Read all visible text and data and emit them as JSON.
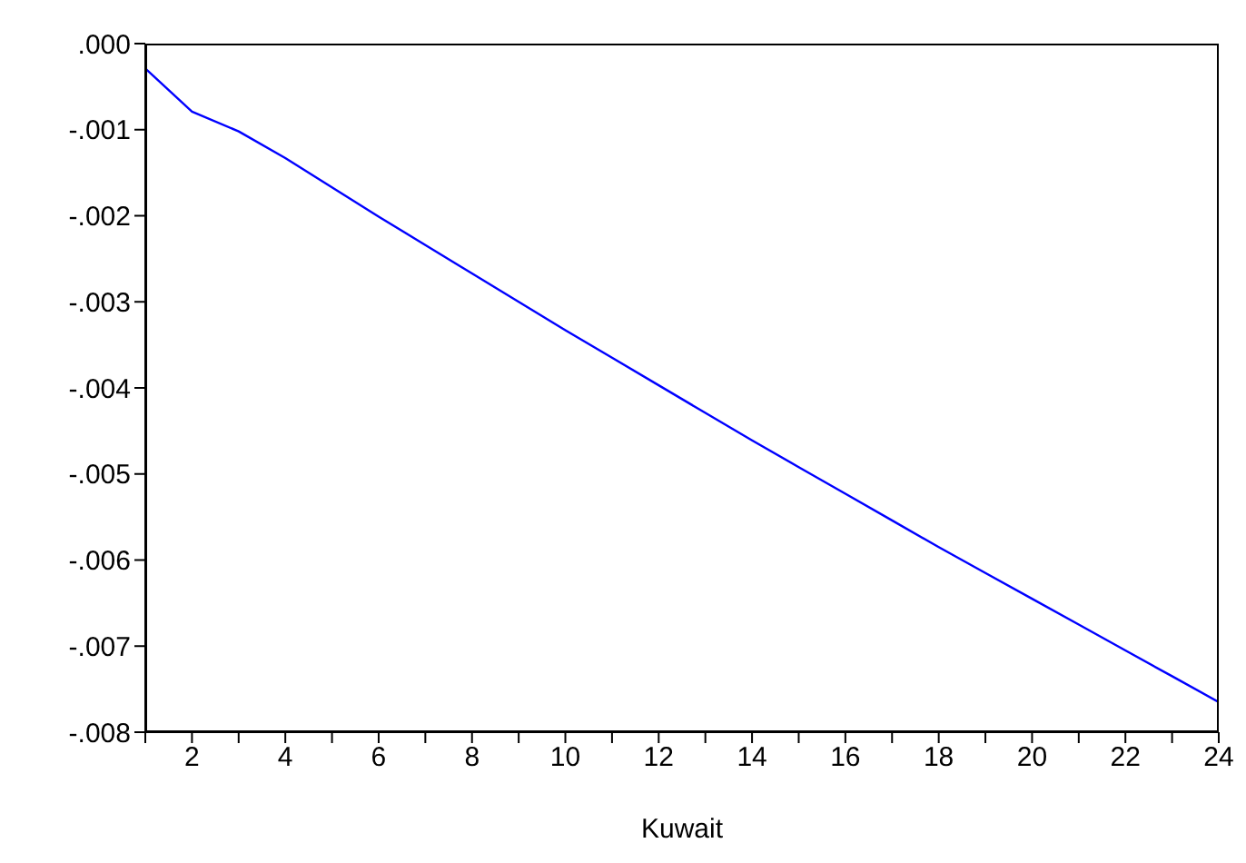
{
  "chart_data": {
    "type": "line",
    "xlabel": "Kuwait",
    "x": [
      1,
      2,
      3,
      4,
      5,
      6,
      7,
      8,
      9,
      10,
      11,
      12,
      13,
      14,
      15,
      16,
      17,
      18,
      19,
      20,
      21,
      22,
      23,
      24
    ],
    "series": [
      {
        "color": "#0000ff",
        "values": [
          -0.00029,
          -0.00079,
          -0.00102,
          -0.00133,
          -0.00167,
          -0.00201,
          -0.00234,
          -0.00267,
          -0.003,
          -0.00333,
          -0.00365,
          -0.00397,
          -0.00429,
          -0.00461,
          -0.00492,
          -0.00523,
          -0.00554,
          -0.00585,
          -0.00615,
          -0.00645,
          -0.00675,
          -0.00705,
          -0.00735,
          -0.00765
        ]
      }
    ],
    "xlim": [
      1,
      24
    ],
    "xticks": [
      {
        "value": 1,
        "label": null
      },
      2,
      {
        "value": 3,
        "label": null
      },
      4,
      {
        "value": 5,
        "label": null
      },
      6,
      {
        "value": 7,
        "label": null
      },
      8,
      {
        "value": 9,
        "label": null
      },
      10,
      {
        "value": 11,
        "label": null
      },
      12,
      {
        "value": 13,
        "label": null
      },
      14,
      {
        "value": 15,
        "label": null
      },
      16,
      {
        "value": 17,
        "label": null
      },
      18,
      {
        "value": 19,
        "label": null
      },
      20,
      {
        "value": 21,
        "label": null
      },
      22,
      {
        "value": 23,
        "label": null
      },
      24
    ],
    "ylim": [
      -0.008,
      0
    ],
    "yticks": [
      {
        "value": 0,
        "label": ".000"
      },
      {
        "value": -0.001,
        "label": "-.001"
      },
      {
        "value": -0.002,
        "label": "-.002"
      },
      {
        "value": -0.003,
        "label": "-.003"
      },
      {
        "value": -0.004,
        "label": "-.004"
      },
      {
        "value": -0.005,
        "label": "-.005"
      },
      {
        "value": -0.006,
        "label": "-.006"
      },
      {
        "value": -0.007,
        "label": "-.007"
      },
      {
        "value": -0.008,
        "label": "-.008"
      }
    ],
    "grid": false,
    "legend": false,
    "marker": "none",
    "line_style": "solid"
  }
}
